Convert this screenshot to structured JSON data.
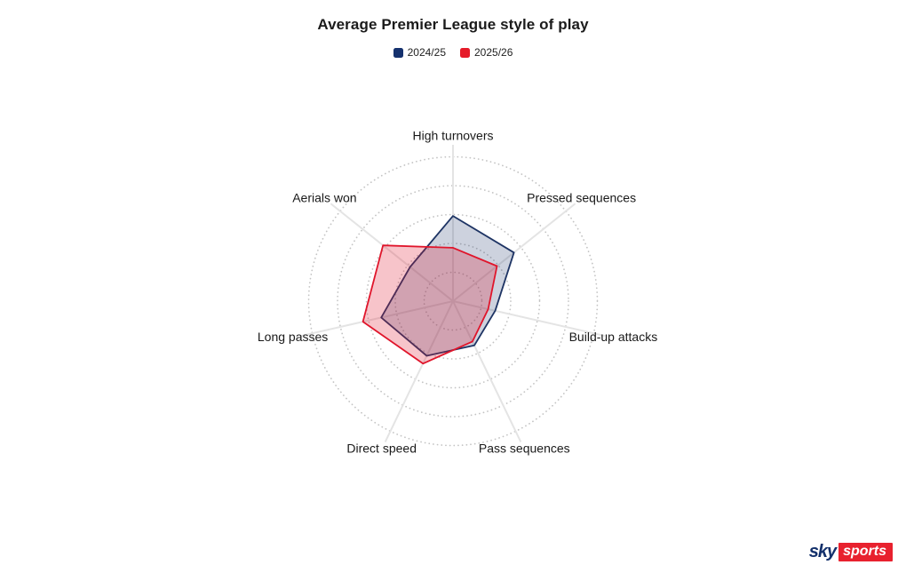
{
  "title": "Average Premier League style of play",
  "legend": {
    "items": [
      {
        "label": "2024/25",
        "color": "#15316e"
      },
      {
        "label": "2025/26",
        "color": "#e51b29"
      }
    ]
  },
  "chart_data": {
    "type": "radar",
    "title": "Average Premier League style of play",
    "categories": [
      "High turnovers",
      "Pressed sequences",
      "Build-up attacks",
      "Pass sequences",
      "Direct speed",
      "Long passes",
      "Aerials won"
    ],
    "series": [
      {
        "name": "2024/25",
        "values": [
          0.59,
          0.54,
          0.3,
          0.34,
          0.42,
          0.51,
          0.38
        ],
        "line_color": "#1e3464",
        "fill_color": "rgba(26,51,107,0.22)"
      },
      {
        "name": "2025/26",
        "values": [
          0.37,
          0.39,
          0.25,
          0.31,
          0.48,
          0.64,
          0.62
        ],
        "line_color": "#e0152b",
        "fill_color": "rgba(224,21,43,0.25)"
      }
    ],
    "scale": {
      "min": 0,
      "max": 1,
      "ring_values": [
        0.2,
        0.4,
        0.6,
        0.8,
        1.0
      ]
    },
    "grid": {
      "rings": 5,
      "ring_style": "dotted",
      "ring_color": "#c4c4c4",
      "spoke_color": "#e4e4e4",
      "axis_tick_labels": "none"
    },
    "legend_position": "top"
  },
  "branding": {
    "sky_text": "sky",
    "sports_text": "sports",
    "sky_color": "#13306b",
    "box_color": "#e8212e",
    "sports_text_color": "#ffffff"
  }
}
